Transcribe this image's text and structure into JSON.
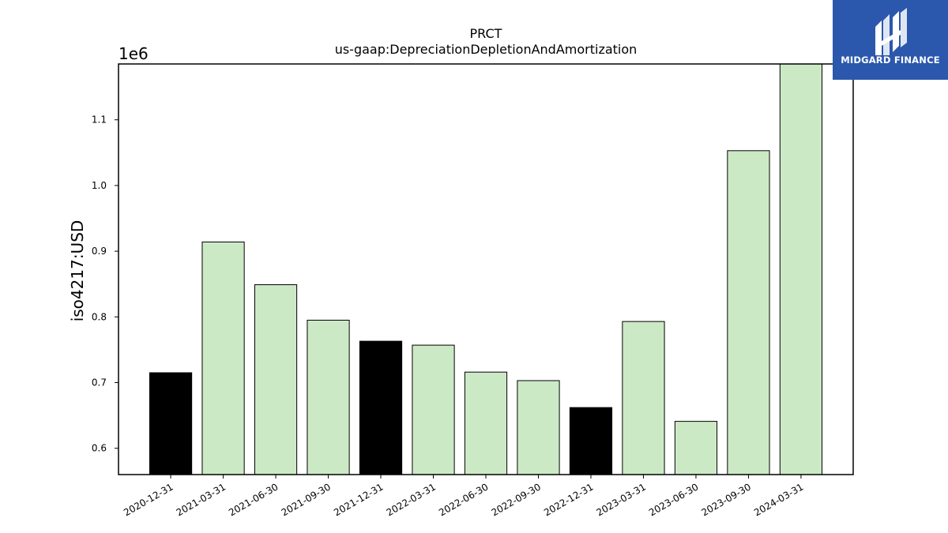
{
  "chart_data": {
    "type": "bar",
    "title": "PRCT",
    "subtitle": "us-gaap:DepreciationDepletionAndAmortization",
    "ylabel": "iso4217:USD",
    "y_offset_label": "1e6",
    "ylim": [
      560000,
      1185000
    ],
    "yticks": [
      600000,
      700000,
      800000,
      900000,
      1000000,
      1100000
    ],
    "ytick_labels": [
      "0.6",
      "0.7",
      "0.8",
      "0.9",
      "1.0",
      "1.1"
    ],
    "categories": [
      "2020-12-31",
      "2021-03-31",
      "2021-06-30",
      "2021-09-30",
      "2021-12-31",
      "2022-03-31",
      "2022-06-30",
      "2022-09-30",
      "2022-12-31",
      "2023-03-31",
      "2023-06-30",
      "2023-09-30",
      "2024-03-31"
    ],
    "values": [
      715000,
      914000,
      849000,
      795000,
      763000,
      757000,
      716000,
      703000,
      662000,
      793000,
      641000,
      1053000,
      1185000
    ],
    "bar_colors": [
      "#000000",
      "#cce9c6",
      "#cce9c6",
      "#cce9c6",
      "#000000",
      "#cce9c6",
      "#cce9c6",
      "#cce9c6",
      "#000000",
      "#cce9c6",
      "#cce9c6",
      "#cce9c6",
      "#cce9c6"
    ],
    "grid": false
  },
  "logo": {
    "text": "MIDGARD FINANCE",
    "background": "#2b58ad"
  }
}
